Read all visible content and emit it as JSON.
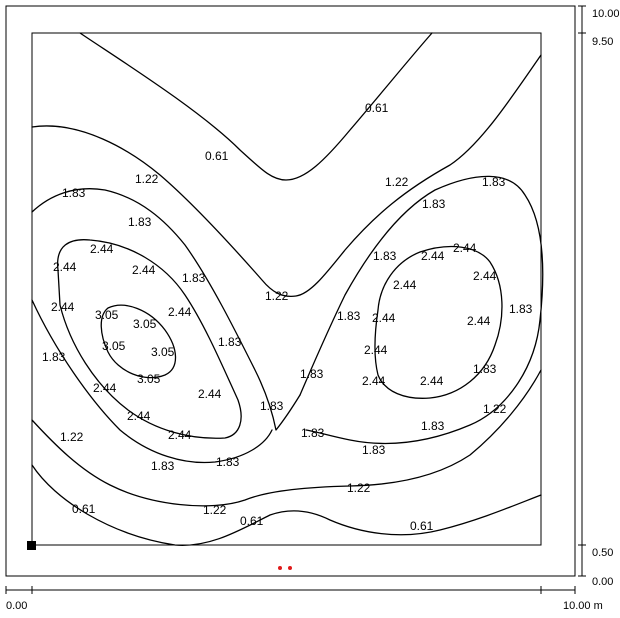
{
  "chart_data": {
    "type": "contour",
    "title": "",
    "x_ticks": [
      "0.00",
      "10.00 m"
    ],
    "y_ticks": [
      "10.00",
      "9.50",
      "0.50",
      "0.00"
    ],
    "xlim": [
      0,
      10
    ],
    "ylim": [
      0,
      10
    ],
    "inner_area": {
      "x": [
        0.5,
        9.5
      ],
      "y": [
        0.5,
        9.5
      ]
    },
    "levels": [
      0.61,
      1.22,
      1.83,
      2.44,
      3.05
    ],
    "level_labels": [
      "0.61",
      "1.22",
      "1.83",
      "2.44",
      "3.05"
    ],
    "luminaire_count": 2,
    "colors": {
      "lines": "#000000",
      "luminaires": "#e01b1b",
      "marker": "#000000"
    },
    "grid": false
  }
}
